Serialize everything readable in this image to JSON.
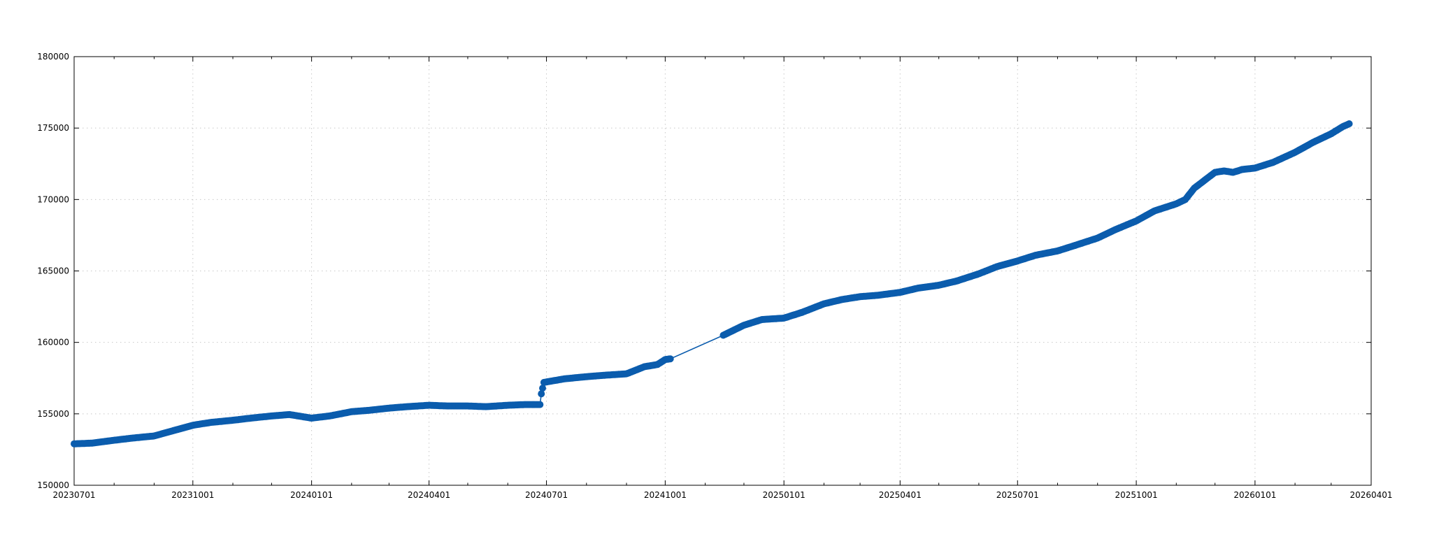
{
  "chart_data": {
    "type": "line",
    "title": "",
    "xlabel": "",
    "ylabel": "",
    "x_axis": {
      "type": "date",
      "range": [
        "2023-07-01",
        "2026-04-01"
      ],
      "ticks": [
        {
          "date": "2023-07-01",
          "label": "20230701"
        },
        {
          "date": "2023-10-01",
          "label": "20231001"
        },
        {
          "date": "2024-01-01",
          "label": "20240101"
        },
        {
          "date": "2024-04-01",
          "label": "20240401"
        },
        {
          "date": "2024-07-01",
          "label": "20240701"
        },
        {
          "date": "2024-10-01",
          "label": "20241001"
        },
        {
          "date": "2025-01-01",
          "label": "20250101"
        },
        {
          "date": "2025-04-01",
          "label": "20250401"
        },
        {
          "date": "2025-07-01",
          "label": "20250701"
        },
        {
          "date": "2025-10-01",
          "label": "20251001"
        },
        {
          "date": "2026-01-01",
          "label": "20260101"
        },
        {
          "date": "2026-04-01",
          "label": "20260401"
        }
      ]
    },
    "y_axis": {
      "range": [
        150000,
        180000
      ],
      "ticks": [
        {
          "value": 150000,
          "label": "150000"
        },
        {
          "value": 155000,
          "label": "155000"
        },
        {
          "value": 160000,
          "label": "160000"
        },
        {
          "value": 165000,
          "label": "165000"
        },
        {
          "value": 170000,
          "label": "170000"
        },
        {
          "value": 175000,
          "label": "175000"
        },
        {
          "value": 180000,
          "label": "180000"
        }
      ]
    },
    "grid": true,
    "legend": "none",
    "series": [
      {
        "color": "#0b5cad",
        "markers": "filled-circle",
        "points": [
          [
            "2023-07-01",
            152900
          ],
          [
            "2023-07-15",
            152950
          ],
          [
            "2023-08-01",
            153150
          ],
          [
            "2023-08-15",
            153300
          ],
          [
            "2023-09-01",
            153450
          ],
          [
            "2023-09-15",
            153800
          ],
          [
            "2023-10-01",
            154200
          ],
          [
            "2023-10-15",
            154400
          ],
          [
            "2023-11-01",
            154550
          ],
          [
            "2023-11-15",
            154700
          ],
          [
            "2023-12-01",
            154850
          ],
          [
            "2023-12-15",
            154950
          ],
          [
            "2024-01-01",
            154700
          ],
          [
            "2024-01-15",
            154850
          ],
          [
            "2024-02-01",
            155150
          ],
          [
            "2024-02-15",
            155250
          ],
          [
            "2024-03-01",
            155400
          ],
          [
            "2024-03-15",
            155500
          ],
          [
            "2024-04-01",
            155600
          ],
          [
            "2024-04-15",
            155550
          ],
          [
            "2024-05-01",
            155550
          ],
          [
            "2024-05-15",
            155500
          ],
          [
            "2024-06-01",
            155600
          ],
          [
            "2024-06-15",
            155650
          ],
          [
            "2024-06-26",
            155650
          ],
          [
            "2024-06-27",
            156400
          ],
          [
            "2024-06-29",
            157200
          ],
          [
            "2024-07-15",
            157450
          ],
          [
            "2024-08-01",
            157600
          ],
          [
            "2024-08-15",
            157700
          ],
          [
            "2024-09-01",
            157800
          ],
          [
            "2024-09-15",
            158300
          ],
          [
            "2024-09-25",
            158450
          ],
          [
            "2024-10-01",
            158800
          ],
          [
            "2024-10-05",
            158850
          ],
          [
            "2024-11-15",
            160500
          ],
          [
            "2024-12-01",
            161200
          ],
          [
            "2024-12-15",
            161600
          ],
          [
            "2025-01-01",
            161700
          ],
          [
            "2025-01-15",
            162100
          ],
          [
            "2025-02-01",
            162700
          ],
          [
            "2025-02-15",
            163000
          ],
          [
            "2025-03-01",
            163200
          ],
          [
            "2025-03-15",
            163300
          ],
          [
            "2025-04-01",
            163500
          ],
          [
            "2025-04-15",
            163800
          ],
          [
            "2025-05-01",
            164000
          ],
          [
            "2025-05-15",
            164300
          ],
          [
            "2025-06-01",
            164800
          ],
          [
            "2025-06-15",
            165300
          ],
          [
            "2025-07-01",
            165700
          ],
          [
            "2025-07-15",
            166100
          ],
          [
            "2025-08-01",
            166400
          ],
          [
            "2025-08-15",
            166800
          ],
          [
            "2025-09-01",
            167300
          ],
          [
            "2025-09-15",
            167900
          ],
          [
            "2025-10-01",
            168500
          ],
          [
            "2025-10-15",
            169200
          ],
          [
            "2025-11-01",
            169700
          ],
          [
            "2025-11-08",
            170000
          ],
          [
            "2025-11-15",
            170800
          ],
          [
            "2025-12-01",
            171900
          ],
          [
            "2025-12-08",
            172000
          ],
          [
            "2025-12-15",
            171900
          ],
          [
            "2025-12-22",
            172100
          ],
          [
            "2026-01-01",
            172200
          ],
          [
            "2026-01-15",
            172600
          ],
          [
            "2026-02-01",
            173300
          ],
          [
            "2026-02-15",
            174000
          ],
          [
            "2026-03-01",
            174600
          ],
          [
            "2026-03-10",
            175100
          ],
          [
            "2026-03-15",
            175300
          ]
        ]
      }
    ]
  }
}
